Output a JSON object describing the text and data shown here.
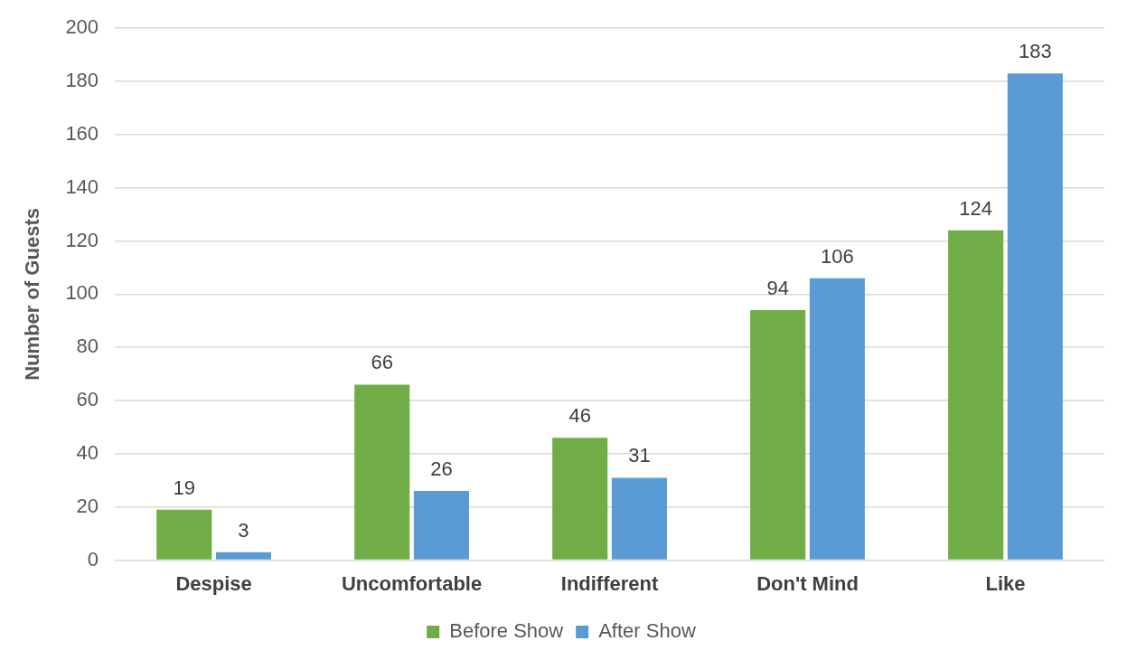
{
  "chart_data": {
    "type": "bar",
    "ylabel": "Number of Guests",
    "categories": [
      "Despise",
      "Uncomfortable",
      "Indifferent",
      "Don't Mind",
      "Like"
    ],
    "series": [
      {
        "name": "Before Show",
        "color": "#70ad47",
        "values": [
          19,
          66,
          46,
          94,
          124
        ]
      },
      {
        "name": "After Show",
        "color": "#5b9bd5",
        "values": [
          3,
          26,
          31,
          106,
          183
        ]
      }
    ],
    "ylim": [
      0,
      200
    ],
    "yticks": [
      0,
      20,
      40,
      60,
      80,
      100,
      120,
      140,
      160,
      180,
      200
    ],
    "grid": "y",
    "legend": "bottom",
    "data_labels": true
  }
}
